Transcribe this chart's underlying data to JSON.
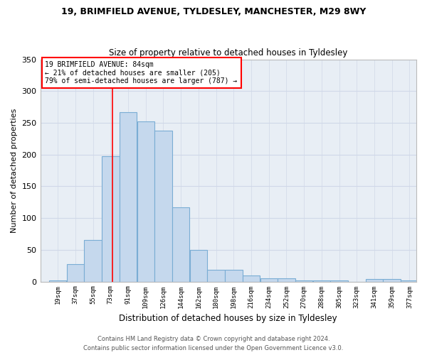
{
  "title": "19, BRIMFIELD AVENUE, TYLDESLEY, MANCHESTER, M29 8WY",
  "subtitle": "Size of property relative to detached houses in Tyldesley",
  "xlabel": "Distribution of detached houses by size in Tyldesley",
  "ylabel": "Number of detached properties",
  "footer1": "Contains HM Land Registry data © Crown copyright and database right 2024.",
  "footer2": "Contains public sector information licensed under the Open Government Licence v3.0.",
  "categories": [
    "19sqm",
    "37sqm",
    "55sqm",
    "73sqm",
    "91sqm",
    "109sqm",
    "126sqm",
    "144sqm",
    "162sqm",
    "180sqm",
    "198sqm",
    "216sqm",
    "234sqm",
    "252sqm",
    "270sqm",
    "288sqm",
    "305sqm",
    "323sqm",
    "341sqm",
    "359sqm",
    "377sqm"
  ],
  "values": [
    2,
    27,
    65,
    197,
    267,
    252,
    238,
    117,
    50,
    18,
    18,
    10,
    5,
    5,
    2,
    2,
    2,
    0,
    4,
    4,
    2
  ],
  "bar_color": "#c5d8ed",
  "bar_edge_color": "#7aadd4",
  "bar_linewidth": 0.8,
  "grid_color": "#d0d8e8",
  "bg_color": "#e8eef5",
  "fig_bg_color": "#ffffff",
  "property_line_x": 84,
  "property_line_color": "red",
  "annotation_text": "19 BRIMFIELD AVENUE: 84sqm\n← 21% of detached houses are smaller (205)\n79% of semi-detached houses are larger (787) →",
  "annotation_box_color": "red",
  "xlim_min": 10,
  "xlim_max": 395,
  "ylim_min": 0,
  "ylim_max": 350,
  "yticks": [
    0,
    50,
    100,
    150,
    200,
    250,
    300,
    350
  ],
  "bin_width": 18
}
